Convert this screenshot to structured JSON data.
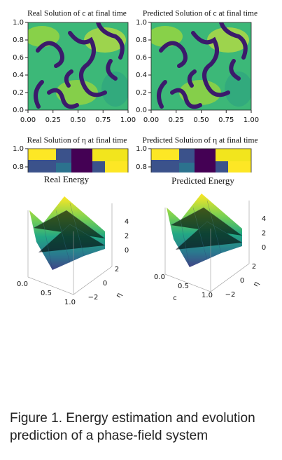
{
  "panels": [
    {
      "title": "Real Solution of c at final time",
      "yticks": [
        "0.0",
        "0.2",
        "0.4",
        "0.6",
        "0.8",
        "1.0"
      ],
      "xticks": [
        "0.00",
        "0.25",
        "0.50",
        "0.75",
        "1.00"
      ]
    },
    {
      "title": "Predicted Solution of c at final time",
      "yticks": [
        "0.0",
        "0.2",
        "0.4",
        "0.6",
        "0.8",
        "1.0"
      ],
      "xticks": [
        "0.00",
        "0.25",
        "0.50",
        "0.75",
        "1.00"
      ]
    }
  ],
  "eta_panels": [
    {
      "title": "Real Solution of η at final time",
      "yticks": [
        "0.8",
        "1.0"
      ]
    },
    {
      "title": "Predicted Solution of η at final time",
      "yticks": [
        "0.8",
        "1.0"
      ]
    }
  ],
  "energy": [
    {
      "title": "Real Energy",
      "z_ticks": [
        "4",
        "2",
        "0"
      ],
      "eta_ticks": [
        "2",
        "0",
        "−2"
      ],
      "eta_label": "η",
      "c_ticks": [
        "0.0",
        "0.5",
        "1.0"
      ]
    },
    {
      "title": "Predicted Energy",
      "z_ticks": [
        "4",
        "2",
        "0"
      ],
      "eta_ticks": [
        "2",
        "0",
        "−2"
      ],
      "eta_label": "η",
      "c_ticks": [
        "0.0",
        "0.5",
        "1.0"
      ],
      "c_label": "c"
    }
  ],
  "caption": "Figure 1.  Energy estimation and evolution prediction of a phase-field system"
}
